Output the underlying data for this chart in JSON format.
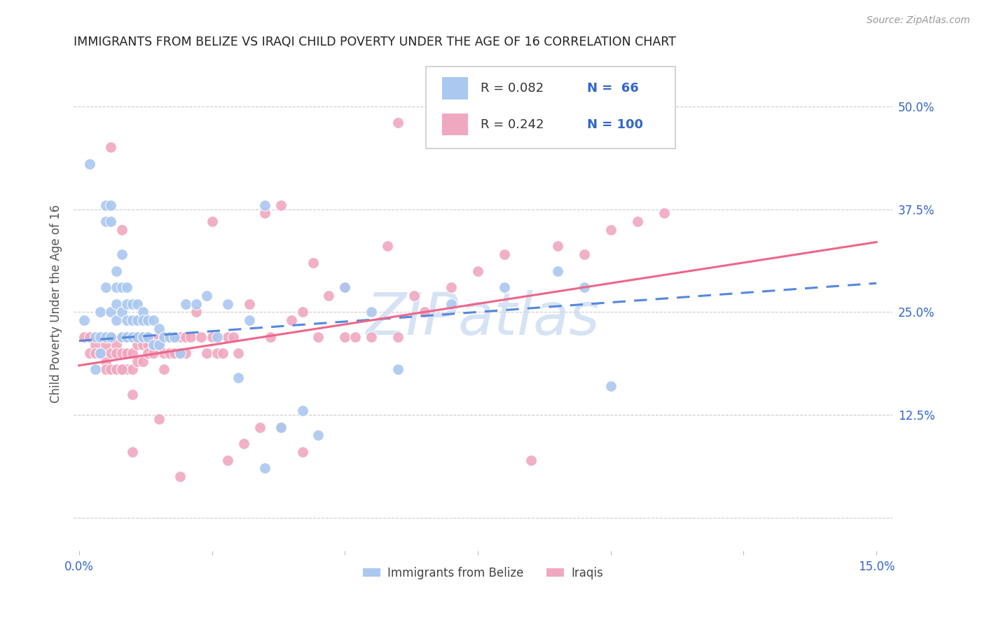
{
  "title": "IMMIGRANTS FROM BELIZE VS IRAQI CHILD POVERTY UNDER THE AGE OF 16 CORRELATION CHART",
  "source": "Source: ZipAtlas.com",
  "ylabel": "Child Poverty Under the Age of 16",
  "xlim": [
    -0.001,
    0.153
  ],
  "ylim": [
    -0.04,
    0.56
  ],
  "xtick_pos": [
    0.0,
    0.025,
    0.05,
    0.075,
    0.1,
    0.125,
    0.15
  ],
  "xtick_labels": [
    "0.0%",
    "",
    "",
    "",
    "",
    "",
    "15.0%"
  ],
  "ytick_pos": [
    0.0,
    0.125,
    0.25,
    0.375,
    0.5
  ],
  "ytick_labels": [
    "",
    "12.5%",
    "25.0%",
    "37.5%",
    "50.0%"
  ],
  "belize_R": 0.082,
  "belize_N": 66,
  "iraqi_R": 0.242,
  "iraqi_N": 100,
  "belize_color": "#aac8f0",
  "iraqi_color": "#f0a8c0",
  "belize_line_color": "#5588dd",
  "iraqi_line_color": "#ee6688",
  "legend_text_color": "#3366cc",
  "watermark": "ZIPatlas",
  "belize_line_x0": 0.0,
  "belize_line_y0": 0.215,
  "belize_line_x1": 0.15,
  "belize_line_y1": 0.285,
  "iraqi_line_x0": 0.0,
  "iraqi_line_y0": 0.185,
  "iraqi_line_x1": 0.15,
  "iraqi_line_y1": 0.335,
  "belize_x": [
    0.001,
    0.002,
    0.003,
    0.003,
    0.004,
    0.004,
    0.004,
    0.005,
    0.005,
    0.005,
    0.005,
    0.006,
    0.006,
    0.006,
    0.006,
    0.007,
    0.007,
    0.007,
    0.007,
    0.008,
    0.008,
    0.008,
    0.008,
    0.009,
    0.009,
    0.009,
    0.009,
    0.01,
    0.01,
    0.01,
    0.011,
    0.011,
    0.011,
    0.012,
    0.012,
    0.012,
    0.013,
    0.013,
    0.014,
    0.014,
    0.015,
    0.015,
    0.016,
    0.017,
    0.018,
    0.019,
    0.02,
    0.022,
    0.024,
    0.026,
    0.028,
    0.03,
    0.032,
    0.035,
    0.038,
    0.042,
    0.045,
    0.05,
    0.055,
    0.06,
    0.07,
    0.08,
    0.09,
    0.095,
    0.1,
    0.035
  ],
  "belize_y": [
    0.24,
    0.43,
    0.22,
    0.18,
    0.25,
    0.22,
    0.2,
    0.38,
    0.36,
    0.28,
    0.22,
    0.38,
    0.36,
    0.25,
    0.22,
    0.3,
    0.28,
    0.26,
    0.24,
    0.32,
    0.28,
    0.25,
    0.22,
    0.28,
    0.26,
    0.24,
    0.22,
    0.26,
    0.24,
    0.22,
    0.26,
    0.24,
    0.22,
    0.25,
    0.24,
    0.22,
    0.24,
    0.22,
    0.24,
    0.21,
    0.23,
    0.21,
    0.22,
    0.22,
    0.22,
    0.2,
    0.26,
    0.26,
    0.27,
    0.22,
    0.26,
    0.17,
    0.24,
    0.38,
    0.11,
    0.13,
    0.1,
    0.28,
    0.25,
    0.18,
    0.26,
    0.28,
    0.3,
    0.28,
    0.16,
    0.06
  ],
  "iraqi_x": [
    0.001,
    0.002,
    0.002,
    0.003,
    0.003,
    0.004,
    0.004,
    0.005,
    0.005,
    0.005,
    0.006,
    0.006,
    0.006,
    0.007,
    0.007,
    0.007,
    0.008,
    0.008,
    0.008,
    0.009,
    0.009,
    0.009,
    0.01,
    0.01,
    0.01,
    0.01,
    0.011,
    0.011,
    0.011,
    0.012,
    0.012,
    0.012,
    0.013,
    0.013,
    0.013,
    0.014,
    0.014,
    0.015,
    0.015,
    0.016,
    0.016,
    0.016,
    0.017,
    0.017,
    0.018,
    0.018,
    0.019,
    0.019,
    0.02,
    0.02,
    0.021,
    0.022,
    0.023,
    0.024,
    0.025,
    0.026,
    0.027,
    0.028,
    0.029,
    0.03,
    0.032,
    0.034,
    0.036,
    0.038,
    0.04,
    0.042,
    0.045,
    0.047,
    0.05,
    0.052,
    0.055,
    0.058,
    0.06,
    0.063,
    0.065,
    0.07,
    0.075,
    0.08,
    0.09,
    0.095,
    0.1,
    0.105,
    0.11,
    0.06,
    0.038,
    0.025,
    0.019,
    0.031,
    0.042,
    0.006,
    0.008,
    0.015,
    0.005,
    0.035,
    0.044,
    0.05,
    0.01,
    0.008,
    0.028,
    0.085
  ],
  "iraqi_y": [
    0.22,
    0.22,
    0.2,
    0.21,
    0.2,
    0.22,
    0.2,
    0.21,
    0.19,
    0.18,
    0.22,
    0.2,
    0.18,
    0.21,
    0.2,
    0.18,
    0.22,
    0.2,
    0.18,
    0.22,
    0.2,
    0.18,
    0.22,
    0.2,
    0.18,
    0.15,
    0.22,
    0.21,
    0.19,
    0.22,
    0.21,
    0.19,
    0.22,
    0.21,
    0.2,
    0.21,
    0.2,
    0.22,
    0.21,
    0.22,
    0.2,
    0.18,
    0.22,
    0.2,
    0.22,
    0.2,
    0.22,
    0.2,
    0.22,
    0.2,
    0.22,
    0.25,
    0.22,
    0.2,
    0.22,
    0.2,
    0.2,
    0.22,
    0.22,
    0.2,
    0.26,
    0.11,
    0.22,
    0.11,
    0.24,
    0.25,
    0.22,
    0.27,
    0.22,
    0.22,
    0.22,
    0.33,
    0.22,
    0.27,
    0.25,
    0.28,
    0.3,
    0.32,
    0.33,
    0.32,
    0.35,
    0.36,
    0.37,
    0.48,
    0.38,
    0.36,
    0.05,
    0.09,
    0.08,
    0.45,
    0.35,
    0.12,
    0.22,
    0.37,
    0.31,
    0.28,
    0.08,
    0.18,
    0.07,
    0.07
  ]
}
